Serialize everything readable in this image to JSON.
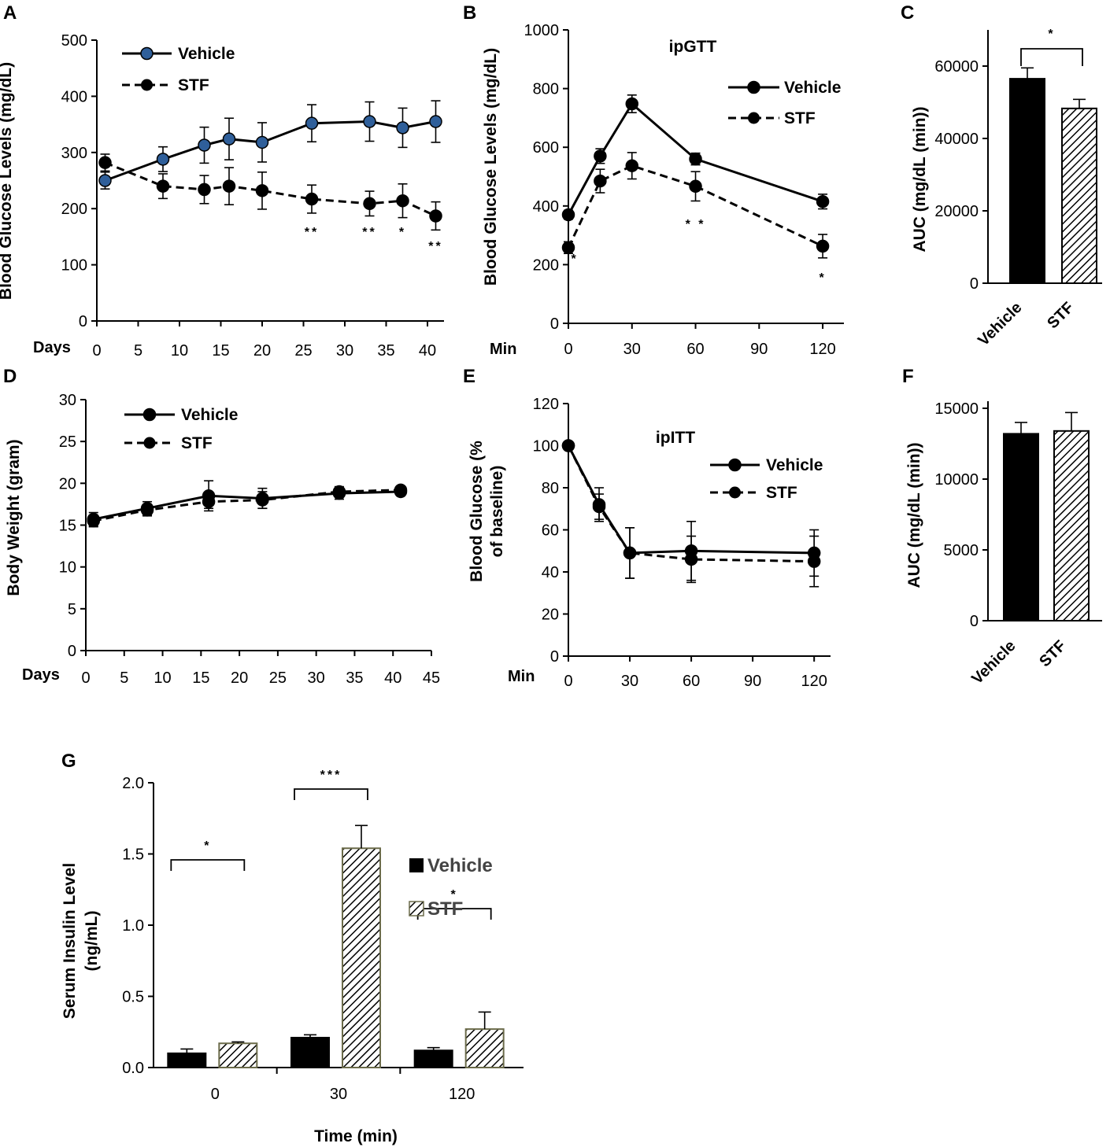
{
  "colors": {
    "ink": "#000000",
    "vehicle_marker_face": "#000000",
    "vehicle_marker_face_panel_a": "#2f5f9a",
    "hatch": "#000000",
    "bar_edge_stf_g": "#6b6b4a"
  },
  "legend": {
    "vehicle": "Vehicle",
    "stf": "STF"
  },
  "chart_data": [
    {
      "panel": "A",
      "type": "line",
      "ylabel": "Blood Glucose Levels (mg/dL)",
      "xname": "Days",
      "xlim": [
        0,
        42
      ],
      "ylim": [
        0,
        500
      ],
      "xticks": [
        "0",
        "5",
        "10",
        "15",
        "20",
        "25",
        "30",
        "35",
        "40"
      ],
      "yticks": [
        "0",
        "100",
        "200",
        "300",
        "400",
        "500"
      ],
      "series": [
        {
          "name": "Vehicle",
          "style": "solid",
          "x": [
            1,
            8,
            13,
            16,
            20,
            26,
            33,
            37,
            41
          ],
          "values": [
            250,
            288,
            313,
            324,
            318,
            352,
            355,
            344,
            355
          ],
          "err": [
            15,
            22,
            32,
            37,
            35,
            33,
            35,
            35,
            37
          ]
        },
        {
          "name": "STF",
          "style": "dashed",
          "x": [
            1,
            8,
            13,
            16,
            20,
            26,
            33,
            37,
            41
          ],
          "values": [
            282,
            240,
            234,
            240,
            232,
            217,
            209,
            214,
            187
          ],
          "err": [
            15,
            22,
            25,
            33,
            33,
            25,
            22,
            30,
            25
          ]
        }
      ],
      "annotations": [
        {
          "x": 26,
          "text": "**"
        },
        {
          "x": 33,
          "text": "**"
        },
        {
          "x": 37,
          "text": "*"
        },
        {
          "x": 41,
          "text": "**"
        }
      ]
    },
    {
      "panel": "B",
      "type": "line",
      "title": "ipGTT",
      "ylabel": "Blood Glucose Levels (mg/dL)",
      "xname": "Min",
      "xlim": [
        0,
        130
      ],
      "ylim": [
        0,
        1000
      ],
      "xticks": [
        "0",
        "30",
        "60",
        "90",
        "120"
      ],
      "yticks": [
        "0",
        "200",
        "400",
        "600",
        "800",
        "1000"
      ],
      "series": [
        {
          "name": "Vehicle",
          "style": "solid",
          "x": [
            0,
            15,
            30,
            60,
            120
          ],
          "values": [
            370,
            570,
            748,
            560,
            415
          ],
          "err": [
            15,
            25,
            30,
            20,
            25
          ]
        },
        {
          "name": "STF",
          "style": "dashed",
          "x": [
            0,
            15,
            30,
            60,
            120
          ],
          "values": [
            258,
            485,
            537,
            467,
            263
          ],
          "err": [
            20,
            40,
            45,
            50,
            40
          ]
        }
      ],
      "annotations": [
        {
          "x": 3,
          "text": "*"
        },
        {
          "x": 60,
          "text": "* *"
        },
        {
          "x": 120,
          "text": "*"
        }
      ]
    },
    {
      "panel": "C",
      "type": "bar",
      "ylabel": "AUC (mg/dL (min))",
      "ylim": [
        0,
        70000
      ],
      "yticks": [
        "0",
        "20000",
        "40000",
        "60000"
      ],
      "categories": [
        "Vehicle",
        "STF"
      ],
      "values": [
        56500,
        48300
      ],
      "err": [
        3000,
        2500
      ],
      "annotations": [
        {
          "between": [
            "Vehicle",
            "STF"
          ],
          "text": "*"
        }
      ]
    },
    {
      "panel": "D",
      "type": "line",
      "ylabel": "Body Weight (gram)",
      "xname": "Days",
      "xlim": [
        0,
        45
      ],
      "ylim": [
        0,
        30
      ],
      "xticks": [
        "0",
        "5",
        "10",
        "15",
        "20",
        "25",
        "30",
        "35",
        "40",
        "45"
      ],
      "yticks": [
        "0",
        "5",
        "10",
        "15",
        "20",
        "25",
        "30"
      ],
      "series": [
        {
          "name": "Vehicle",
          "style": "solid",
          "x": [
            1,
            8,
            16,
            23,
            33,
            41
          ],
          "values": [
            15.7,
            17.0,
            18.5,
            18.2,
            18.8,
            19.0
          ],
          "err": [
            0.8,
            0.8,
            1.8,
            1.2,
            0.7,
            0.5
          ]
        },
        {
          "name": "STF",
          "style": "dashed",
          "x": [
            1,
            8,
            16,
            23,
            33,
            41
          ],
          "values": [
            15.5,
            16.8,
            17.8,
            18.0,
            19.0,
            19.2
          ],
          "err": [
            0.7,
            0.7,
            0.8,
            1.0,
            0.6,
            0.4
          ]
        }
      ]
    },
    {
      "panel": "E",
      "type": "line",
      "title": "ipITT",
      "ylabel": "Blood Glucose (% of baseline)",
      "ylabel_lines": [
        "Blood Glucose (%",
        "of baseline)"
      ],
      "xname": "Min",
      "xlim": [
        0,
        128
      ],
      "ylim": [
        0,
        120
      ],
      "xticks": [
        "0",
        "30",
        "60",
        "90",
        "120"
      ],
      "yticks": [
        "0",
        "20",
        "40",
        "60",
        "80",
        "100",
        "120"
      ],
      "series": [
        {
          "name": "Vehicle",
          "style": "solid",
          "x": [
            0,
            15,
            30,
            60,
            120
          ],
          "values": [
            100,
            72,
            49,
            50,
            49
          ],
          "err": [
            0,
            8,
            12,
            14,
            11
          ]
        },
        {
          "name": "STF",
          "style": "dashed",
          "x": [
            0,
            15,
            30,
            60,
            120
          ],
          "values": [
            100,
            71,
            49,
            46,
            45
          ],
          "err": [
            0,
            6,
            12,
            11,
            12
          ]
        }
      ]
    },
    {
      "panel": "F",
      "type": "bar",
      "ylabel": "AUC (mg/dL (min))",
      "ylim": [
        0,
        15500
      ],
      "yticks": [
        "0",
        "5000",
        "10000",
        "15000"
      ],
      "categories": [
        "Vehicle",
        "STF"
      ],
      "values": [
        13200,
        13400
      ],
      "err": [
        800,
        1300
      ]
    },
    {
      "panel": "G",
      "type": "bar",
      "ylabel": "Serum Insulin Level (ng/mL)",
      "ylabel_lines": [
        "Serum Insulin Level",
        "(ng/mL)"
      ],
      "xlabel": "Time (min)",
      "ylim": [
        0,
        2.0
      ],
      "yticks": [
        "0.0",
        "0.5",
        "1.0",
        "1.5",
        "2.0"
      ],
      "categories": [
        "0",
        "30",
        "120"
      ],
      "series": [
        {
          "name": "Vehicle",
          "values": [
            0.1,
            0.21,
            0.12
          ],
          "err": [
            0.03,
            0.02,
            0.02
          ]
        },
        {
          "name": "STF",
          "values": [
            0.17,
            1.54,
            0.27
          ],
          "err": [
            0.01,
            0.16,
            0.12
          ]
        }
      ],
      "annotations": [
        {
          "category": "0",
          "text": "*"
        },
        {
          "category": "30",
          "text": "***"
        },
        {
          "category": "120",
          "text": "*"
        }
      ]
    }
  ]
}
